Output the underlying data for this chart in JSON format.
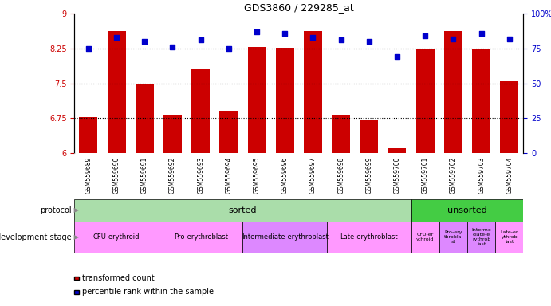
{
  "title": "GDS3860 / 229285_at",
  "samples": [
    "GSM559689",
    "GSM559690",
    "GSM559691",
    "GSM559692",
    "GSM559693",
    "GSM559694",
    "GSM559695",
    "GSM559696",
    "GSM559697",
    "GSM559698",
    "GSM559699",
    "GSM559700",
    "GSM559701",
    "GSM559702",
    "GSM559703",
    "GSM559704"
  ],
  "bar_values": [
    6.77,
    8.63,
    7.5,
    6.82,
    7.82,
    6.91,
    8.28,
    8.27,
    8.62,
    6.82,
    6.71,
    6.1,
    8.25,
    8.62,
    8.25,
    7.54
  ],
  "dot_values": [
    75,
    83,
    80,
    76,
    81,
    75,
    87,
    86,
    83,
    81,
    80,
    69,
    84,
    82,
    86,
    82
  ],
  "bar_color": "#cc0000",
  "dot_color": "#0000cc",
  "ylim_left": [
    6,
    9
  ],
  "ylim_right": [
    0,
    100
  ],
  "yticks_left": [
    6,
    6.75,
    7.5,
    8.25,
    9
  ],
  "yticks_right": [
    0,
    25,
    50,
    75,
    100
  ],
  "hlines": [
    6.75,
    7.5,
    8.25
  ],
  "protocol_sorted_count": 12,
  "protocol_unsorted_count": 4,
  "protocol_sorted_label": "sorted",
  "protocol_unsorted_label": "unsorted",
  "protocol_sorted_color": "#aaddaa",
  "protocol_unsorted_color": "#44cc44",
  "dev_stages": [
    {
      "label": "CFU-erythroid",
      "count": 3,
      "color": "#ff99ff"
    },
    {
      "label": "Pro-erythroblast",
      "count": 3,
      "color": "#ff99ff"
    },
    {
      "label": "Intermediate-erythroblast",
      "count": 3,
      "color": "#dd88ff"
    },
    {
      "label": "Late-erythroblast",
      "count": 3,
      "color": "#ff99ff"
    },
    {
      "label": "CFU-er\nythroid",
      "count": 1,
      "color": "#ff99ff"
    },
    {
      "label": "Pro-ery\nthrobla\nst",
      "count": 1,
      "color": "#dd88ff"
    },
    {
      "label": "Interme\ndiate-e\nrythrob\nlast",
      "count": 1,
      "color": "#dd88ff"
    },
    {
      "label": "Late-er\nythrob\nlast",
      "count": 1,
      "color": "#ff99ff"
    }
  ],
  "legend_bar_label": "transformed count",
  "legend_dot_label": "percentile rank within the sample",
  "background_color": "#ffffff",
  "tick_area_color": "#cccccc"
}
